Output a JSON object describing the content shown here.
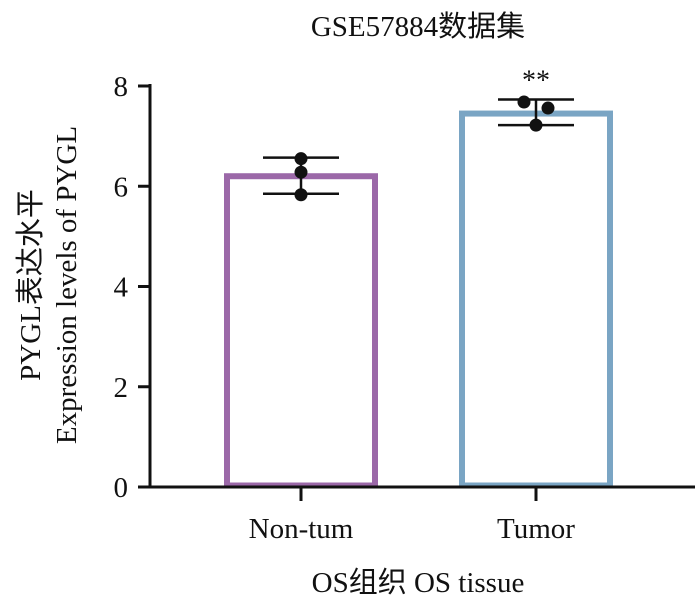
{
  "chart_data": {
    "type": "bar",
    "title": "GSE57884数据集",
    "ylabel_line1": "PYGL表达水平",
    "ylabel_line2": "Expression levels of PYGL",
    "xlabel": "OS组织 OS tissue",
    "ylim": [
      0,
      8
    ],
    "yticks": [
      "0",
      "2",
      "4",
      "6",
      "8"
    ],
    "categories": [
      "Non-tum",
      "Tumor"
    ],
    "values": [
      6.2,
      7.45
    ],
    "errors": [
      {
        "low": 5.85,
        "high": 6.57
      },
      {
        "low": 7.22,
        "high": 7.73
      }
    ],
    "points": [
      [
        6.55,
        6.28,
        5.83
      ],
      [
        7.68,
        7.56,
        7.22
      ]
    ],
    "significance": [
      "",
      "**"
    ],
    "colors": [
      "#9b68a8",
      "#7aa5c4"
    ],
    "grid": false,
    "legend": "none"
  }
}
